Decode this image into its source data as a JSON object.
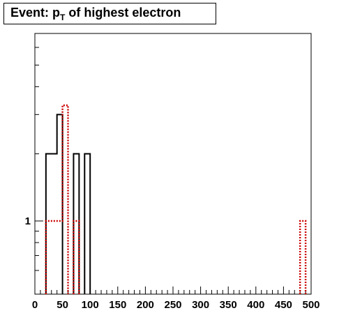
{
  "chart_data": {
    "type": "histogram",
    "title": {
      "prefix": "Event: p",
      "subscript": "T",
      "suffix": " of highest electron"
    },
    "x_axis": {
      "range": [
        0,
        500
      ],
      "tick_labels": [
        "0",
        "50",
        "100",
        "150",
        "200",
        "250",
        "300",
        "350",
        "400",
        "450",
        "500"
      ]
    },
    "y_axis": {
      "scale": "log",
      "tick_labels": [
        {
          "value": 1,
          "label": "1"
        }
      ]
    },
    "bin_width": 10,
    "series": [
      {
        "style": "solid",
        "color": "#000000",
        "bins": [
          {
            "x": [
              20,
              40
            ],
            "y": 2.0
          },
          {
            "x": [
              40,
              50
            ],
            "y": 3.0
          },
          {
            "x": [
              70,
              80
            ],
            "y": 2.0
          },
          {
            "x": [
              90,
              100
            ],
            "y": 2.0
          }
        ]
      },
      {
        "style": "dotted",
        "color": "#cc0000",
        "bins": [
          {
            "x": [
              20,
              50
            ],
            "y": 1.0
          },
          {
            "x": [
              50,
              60
            ],
            "y": 3.3
          },
          {
            "x": [
              70,
              80
            ],
            "y": 1.0
          },
          {
            "x": [
              480,
              490
            ],
            "y": 1.0
          }
        ]
      }
    ]
  }
}
